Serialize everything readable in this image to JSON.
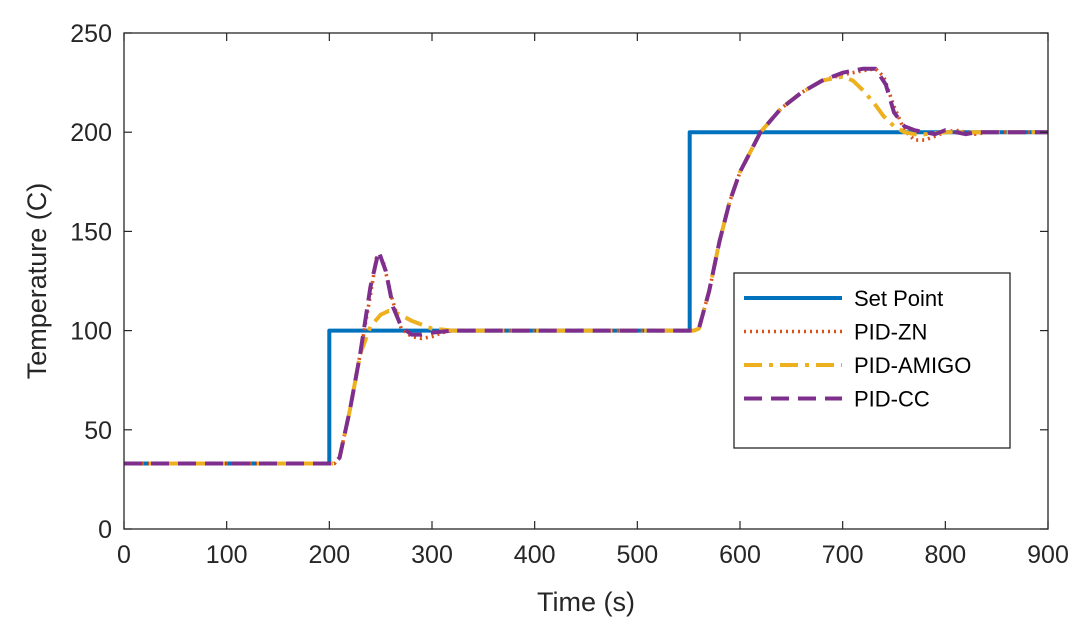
{
  "chart_data": {
    "type": "line",
    "title": "",
    "xlabel": "Time (s)",
    "ylabel": "Temperature (C)",
    "xlim": [
      0,
      900
    ],
    "ylim": [
      0,
      250
    ],
    "xticks": [
      0,
      100,
      200,
      300,
      400,
      500,
      600,
      700,
      800,
      900
    ],
    "yticks": [
      0,
      50,
      100,
      150,
      200,
      250
    ],
    "grid": false,
    "legend_position": "center-right",
    "series": [
      {
        "name": "Set Point",
        "color": "#0072BD",
        "style": "solid",
        "x": [
          0,
          200,
          200,
          551,
          551,
          900
        ],
        "y": [
          33,
          33,
          100,
          100,
          200,
          200
        ]
      },
      {
        "name": "PID-ZN",
        "color": "#D95319",
        "style": "dotted",
        "x": [
          0,
          205,
          210,
          220,
          230,
          240,
          246,
          252,
          260,
          270,
          280,
          290,
          300,
          310,
          320,
          340,
          380,
          450,
          520,
          555,
          560,
          570,
          580,
          590,
          600,
          620,
          640,
          660,
          680,
          700,
          720,
          732,
          740,
          750,
          760,
          770,
          780,
          790,
          800,
          810,
          820,
          830,
          840,
          860,
          900
        ],
        "y": [
          33,
          33,
          36,
          60,
          88,
          118,
          137,
          136,
          118,
          101,
          97,
          96,
          97,
          99,
          100,
          100,
          100,
          100,
          100,
          100,
          101,
          120,
          145,
          165,
          180,
          200,
          212,
          220,
          226,
          229,
          231,
          232,
          228,
          213,
          201,
          196,
          196,
          198,
          200,
          201,
          200,
          199,
          200,
          200,
          200
        ]
      },
      {
        "name": "PID-AMIGO",
        "color": "#EDB120",
        "style": "dashdot",
        "x": [
          0,
          205,
          210,
          220,
          230,
          240,
          250,
          258,
          265,
          280,
          300,
          320,
          340,
          380,
          450,
          520,
          555,
          560,
          570,
          580,
          590,
          600,
          620,
          640,
          660,
          680,
          700,
          710,
          720,
          730,
          740,
          750,
          760,
          770,
          780,
          800,
          830,
          860,
          900
        ],
        "y": [
          33,
          33,
          36,
          60,
          88,
          102,
          108,
          110,
          109,
          105,
          101,
          100,
          100,
          100,
          100,
          100,
          100,
          101,
          120,
          145,
          165,
          180,
          200,
          212,
          220,
          226,
          228,
          226,
          221,
          215,
          208,
          203,
          200,
          199,
          199,
          200,
          200,
          200,
          200
        ]
      },
      {
        "name": "PID-CC",
        "color": "#7E2F8E",
        "style": "dashed",
        "x": [
          0,
          205,
          210,
          220,
          230,
          240,
          248,
          255,
          262,
          270,
          280,
          290,
          300,
          320,
          340,
          380,
          450,
          520,
          555,
          560,
          570,
          580,
          590,
          600,
          620,
          640,
          660,
          680,
          700,
          720,
          732,
          742,
          750,
          760,
          770,
          780,
          790,
          800,
          810,
          820,
          830,
          850,
          900
        ],
        "y": [
          33,
          33,
          36,
          60,
          88,
          122,
          140,
          130,
          112,
          102,
          98,
          98,
          99,
          100,
          100,
          100,
          100,
          100,
          100,
          101,
          120,
          145,
          165,
          180,
          200,
          212,
          220,
          226,
          230,
          232,
          232,
          224,
          210,
          203,
          201,
          200,
          199,
          201,
          200,
          199,
          200,
          200,
          200
        ]
      }
    ]
  }
}
